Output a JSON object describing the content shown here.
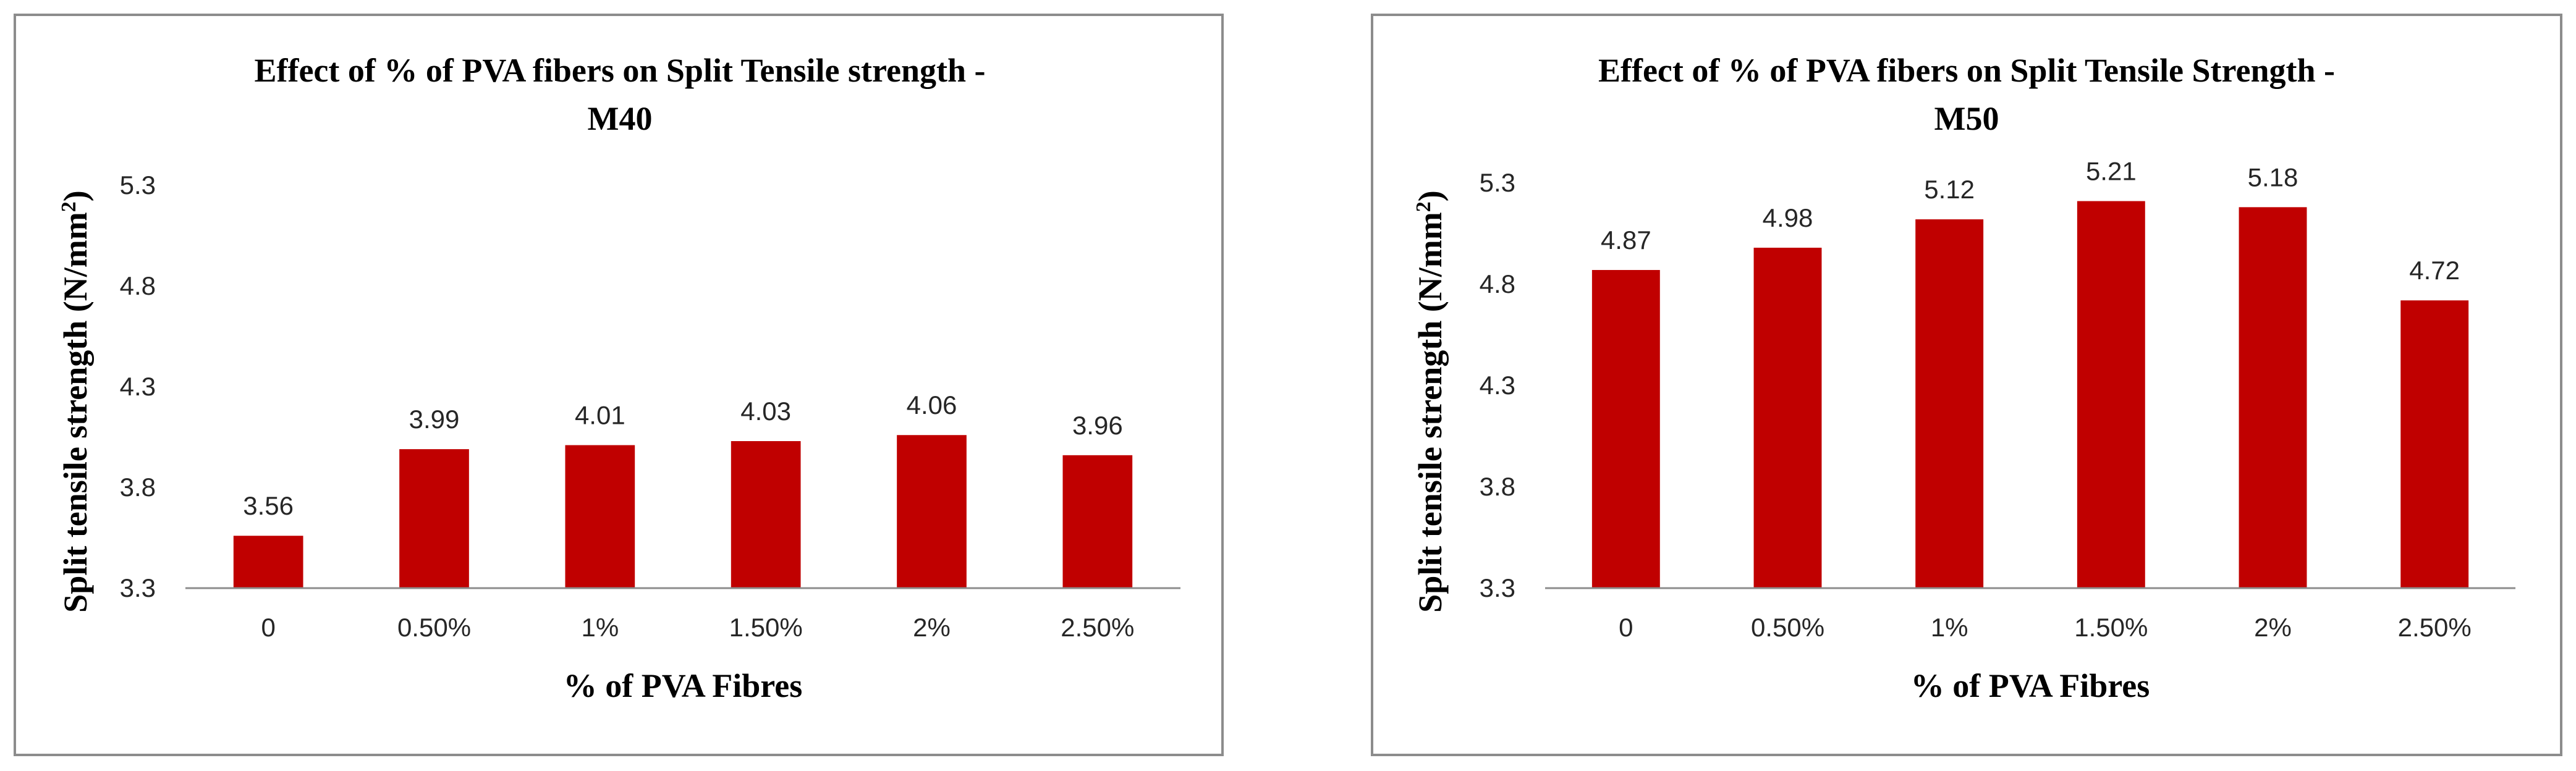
{
  "chart_data": [
    {
      "type": "bar",
      "title_lines": [
        "Effect of % of PVA fibers on Split Tensile strength -",
        "M40"
      ],
      "xlabel": "% of PVA Fibres",
      "ylabel": "Split tensile strength (N/mm",
      "ylabel_sup": "2",
      "ylabel_close": ")",
      "categories": [
        "0",
        "0.50%",
        "1%",
        "1.50%",
        "2%",
        "2.50%"
      ],
      "values": [
        3.56,
        3.99,
        4.01,
        4.03,
        4.06,
        3.96
      ],
      "value_labels": [
        "3.56",
        "3.99",
        "4.01",
        "4.03",
        "4.06",
        "3.96"
      ],
      "ylim": [
        3.3,
        5.3
      ],
      "yticks": [
        "3.3",
        "3.8",
        "4.3",
        "4.8",
        "5.3"
      ],
      "bar_color": "#C00000",
      "grid": false,
      "legend": "none"
    },
    {
      "type": "bar",
      "title_lines": [
        "Effect of % of PVA fibers on Split Tensile Strength -",
        "M50"
      ],
      "xlabel": "% of PVA Fibres",
      "ylabel": "Split tensile strength (N/mm",
      "ylabel_sup": "2",
      "ylabel_close": ")",
      "categories": [
        "0",
        "0.50%",
        "1%",
        "1.50%",
        "2%",
        "2.50%"
      ],
      "values": [
        4.87,
        4.98,
        5.12,
        5.21,
        5.18,
        4.72
      ],
      "value_labels": [
        "4.87",
        "4.98",
        "5.12",
        "5.21",
        "5.18",
        "4.72"
      ],
      "ylim": [
        3.3,
        5.3
      ],
      "yticks": [
        "3.3",
        "3.8",
        "4.3",
        "4.8",
        "5.3"
      ],
      "bar_color": "#C00000",
      "grid": false,
      "legend": "none"
    }
  ]
}
